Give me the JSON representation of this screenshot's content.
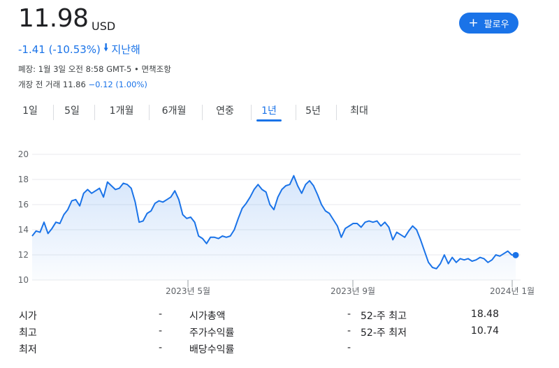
{
  "header": {
    "price": "11.98",
    "currency": "USD",
    "follow_label": "팔로우",
    "change": "-1.41 (-10.53%)",
    "change_period": "지난해",
    "close_info": "폐장: 1월 3일 오전 8:58 GMT-5 • 면책조항",
    "premarket_label": "개장 전 거래",
    "premarket_price": "11.86",
    "premarket_change": "−0.12 (1.00%)",
    "colors": {
      "accent": "#1a73e8",
      "line": "#1a73e8",
      "fill": "#e8f0fe"
    }
  },
  "tabs": [
    {
      "label": "1일"
    },
    {
      "label": "5일"
    },
    {
      "label": "1개월"
    },
    {
      "label": "6개월"
    },
    {
      "label": "연중"
    },
    {
      "label": "1년",
      "active": true
    },
    {
      "label": "5년"
    },
    {
      "label": "최대"
    }
  ],
  "chart_data": {
    "type": "area",
    "title": "",
    "xlabel": "",
    "ylabel": "",
    "ylim": [
      10,
      20
    ],
    "yticks": [
      "20",
      "18",
      "16",
      "14",
      "12",
      "10"
    ],
    "xticks": [
      "2023년 5월",
      "2023년 9월",
      "2024년 1월"
    ],
    "grid": true,
    "series": [
      {
        "values": [
          13.5,
          13.9,
          13.8,
          14.6,
          13.7,
          14.1,
          14.6,
          14.5,
          15.2,
          15.6,
          16.3,
          16.4,
          15.9,
          16.9,
          17.2,
          16.9,
          17.1,
          17.3,
          16.6,
          17.8,
          17.5,
          17.2,
          17.3,
          17.7,
          17.6,
          17.3,
          16.2,
          14.6,
          14.7,
          15.3,
          15.5,
          16.1,
          16.3,
          16.2,
          16.4,
          16.6,
          17.1,
          16.4,
          15.2,
          14.9,
          15.0,
          14.6,
          13.5,
          13.3,
          12.9,
          13.4,
          13.4,
          13.3,
          13.5,
          13.4,
          13.5,
          14.0,
          14.9,
          15.7,
          16.1,
          16.6,
          17.2,
          17.6,
          17.2,
          17.0,
          16.0,
          15.6,
          16.6,
          17.2,
          17.5,
          17.6,
          18.3,
          17.5,
          16.9,
          17.6,
          17.9,
          17.5,
          16.8,
          16.0,
          15.5,
          15.3,
          14.8,
          14.3,
          13.4,
          14.1,
          14.3,
          14.5,
          14.5,
          14.2,
          14.6,
          14.7,
          14.6,
          14.7,
          14.3,
          14.6,
          14.2,
          13.2,
          13.8,
          13.6,
          13.4,
          13.9,
          14.3,
          14.0,
          13.2,
          12.3,
          11.4,
          11.0,
          10.9,
          11.3,
          12.0,
          11.3,
          11.8,
          11.4,
          11.7,
          11.6,
          11.7,
          11.5,
          11.6,
          11.8,
          11.7,
          11.4,
          11.6,
          12.0,
          11.9,
          12.1,
          12.3,
          12.0,
          11.98
        ]
      }
    ]
  },
  "stats": {
    "col1": [
      {
        "label": "시가",
        "value": "-"
      },
      {
        "label": "최고",
        "value": "-"
      },
      {
        "label": "최저",
        "value": "-"
      }
    ],
    "col2": [
      {
        "label": "시가총액",
        "value": "-"
      },
      {
        "label": "주가수익률",
        "value": "-"
      },
      {
        "label": "배당수익률",
        "value": "-"
      }
    ],
    "col3": [
      {
        "label": "52-주 최고",
        "value": "18.48"
      },
      {
        "label": "52-주 최저",
        "value": "10.74"
      }
    ]
  }
}
